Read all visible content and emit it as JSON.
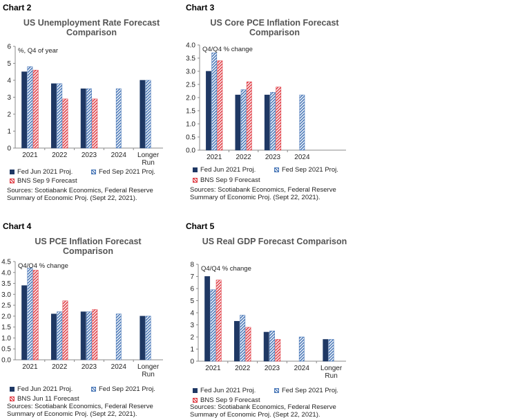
{
  "colors": {
    "navy": "#1f3864",
    "blue": "#4a78b8",
    "blueLight": "#ffffff",
    "red": "#e04048",
    "redLight": "#ffdede",
    "axis": "#888888"
  },
  "chart_data": [
    {
      "label": "Chart 2",
      "type": "bar",
      "title": "US Unemployment Rate Forecast\nComparison",
      "unit_label": "%, Q4 of year",
      "categories": [
        "2021",
        "2022",
        "2023",
        "2024",
        "Longer Run"
      ],
      "ylim": [
        0,
        6
      ],
      "yticks": [
        0,
        1,
        2,
        3,
        4,
        5,
        6
      ],
      "series": [
        {
          "name": "Fed Jun 2021 Proj.",
          "values": [
            4.5,
            3.8,
            3.5,
            null,
            4.0
          ]
        },
        {
          "name": "Fed Sep 2021 Proj.",
          "values": [
            4.8,
            3.8,
            3.5,
            3.5,
            4.0
          ]
        },
        {
          "name": "BNS Sep 9 Forecast",
          "values": [
            4.6,
            2.9,
            2.9,
            null,
            null
          ]
        }
      ],
      "sources": "Sources: Scotiabank Economics, Federal Reserve\nSummary of Economic Proj. (Sept 22, 2021)."
    },
    {
      "label": "Chart 3",
      "type": "bar",
      "title": "US Core PCE Inflation  Forecast\nComparison",
      "unit_label": "Q4/Q4 % change",
      "categories": [
        "2021",
        "2022",
        "2023",
        "2024"
      ],
      "ylim": [
        0,
        4
      ],
      "yticks": [
        0.0,
        0.5,
        1.0,
        1.5,
        2.0,
        2.5,
        3.0,
        3.5,
        4.0
      ],
      "series": [
        {
          "name": "Fed Jun 2021 Proj.",
          "values": [
            3.0,
            2.1,
            2.1,
            null
          ]
        },
        {
          "name": "Fed Sep 2021 Proj.",
          "values": [
            3.7,
            2.3,
            2.2,
            2.1
          ]
        },
        {
          "name": "BNS Sep 9 Forecast",
          "values": [
            3.4,
            2.6,
            2.4,
            null
          ]
        }
      ],
      "sources": "Sources: Scotiabank Economics, Federal Reserve\nSummary of Economic Proj. (Sept 22, 2021)."
    },
    {
      "label": "Chart 4",
      "type": "bar",
      "title": "US PCE Inflation Forecast\nComparison",
      "unit_label": "Q4/Q4 % change",
      "categories": [
        "2021",
        "2022",
        "2023",
        "2024",
        "Longer Run"
      ],
      "ylim": [
        0,
        4.5
      ],
      "yticks": [
        0.0,
        0.5,
        1.0,
        1.5,
        2.0,
        2.5,
        3.0,
        3.5,
        4.0,
        4.5
      ],
      "series": [
        {
          "name": "Fed Jun 2021 Proj.",
          "values": [
            3.4,
            2.1,
            2.2,
            null,
            2.0
          ]
        },
        {
          "name": "Fed Sep 2021 Proj.",
          "values": [
            4.2,
            2.2,
            2.2,
            2.1,
            2.0
          ]
        },
        {
          "name": "BNS Jun 11 Forecast",
          "values": [
            4.1,
            2.7,
            2.3,
            null,
            null
          ]
        }
      ],
      "sources": "Sources: Scotiabank Economics, Federal Reserve\nSummary of Economic Proj. (Sept 22, 2021)."
    },
    {
      "label": "Chart 5",
      "type": "bar",
      "title": "US Real GDP Forecast Comparison",
      "unit_label": "Q4/Q4 % change",
      "categories": [
        "2021",
        "2022",
        "2023",
        "2024",
        "Longer Run"
      ],
      "ylim": [
        0,
        8
      ],
      "yticks": [
        0,
        1,
        2,
        3,
        4,
        5,
        6,
        7,
        8
      ],
      "series": [
        {
          "name": "Fed Jun 2021 Proj.",
          "values": [
            7.0,
            3.3,
            2.4,
            null,
            1.8
          ]
        },
        {
          "name": "Fed Sep 2021 Proj.",
          "values": [
            5.9,
            3.8,
            2.5,
            2.0,
            1.8
          ]
        },
        {
          "name": "BNS Sep 9 Forecast",
          "values": [
            6.7,
            2.8,
            1.8,
            null,
            null
          ]
        }
      ],
      "sources": "Sources: Scotiabank Economics, Federal Reserve\nSummary of Economic Proj. (Sept 22, 2021)."
    }
  ]
}
